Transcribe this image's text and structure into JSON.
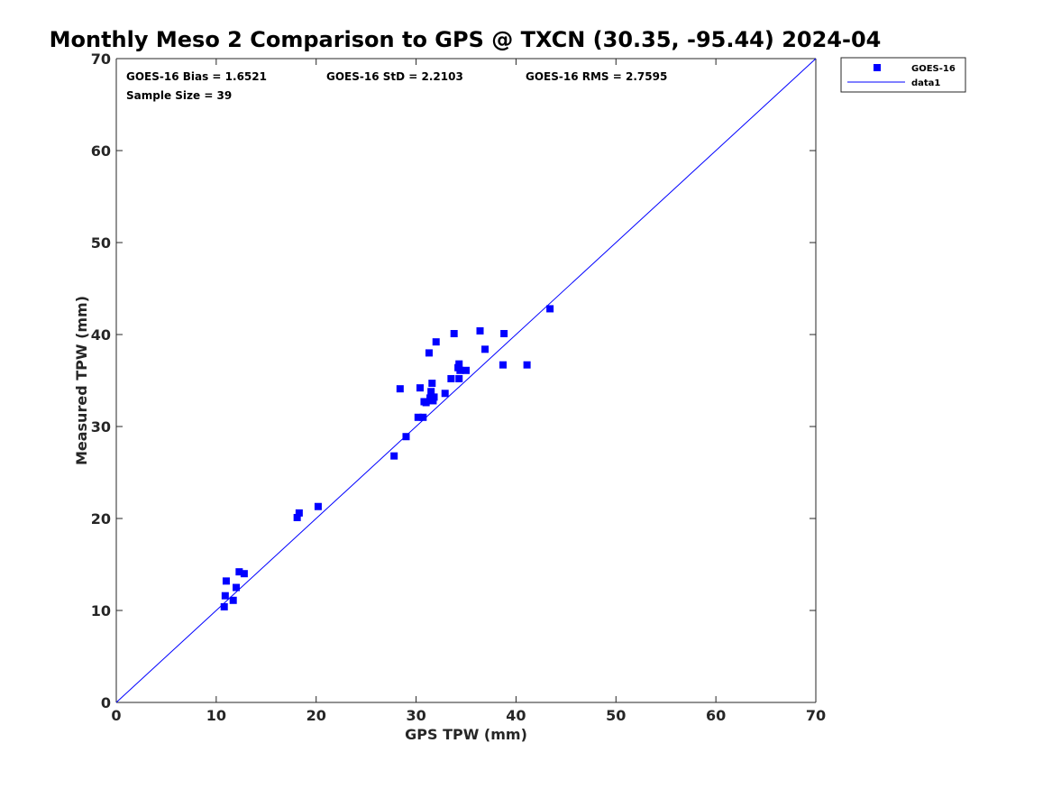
{
  "chart_data": {
    "type": "scatter",
    "title": "Monthly Meso 2 Comparison to GPS @ TXCN (30.35, -95.44) 2024-04",
    "xlabel": "GPS TPW (mm)",
    "ylabel": "Measured TPW (mm)",
    "xlim": [
      0,
      70
    ],
    "ylim": [
      0,
      70
    ],
    "xticks": [
      "0",
      "10",
      "20",
      "30",
      "40",
      "50",
      "60",
      "70"
    ],
    "yticks": [
      "0",
      "10",
      "20",
      "30",
      "40",
      "50",
      "60",
      "70"
    ],
    "xtick_values": [
      0,
      10,
      20,
      30,
      40,
      50,
      60,
      70
    ],
    "ytick_values": [
      0,
      10,
      20,
      30,
      40,
      50,
      60,
      70
    ],
    "grid": false,
    "legend_position": "outside-top-right",
    "stats": {
      "bias": "GOES-16 Bias = 1.6521",
      "std": "GOES-16 StD = 2.2103",
      "rms": "GOES-16 RMS = 2.7595",
      "sample": "Sample Size = 39"
    },
    "series": [
      {
        "name": "GOES-16",
        "kind": "scatter",
        "marker": "square",
        "color": "#0000ff",
        "x": [
          10.8,
          10.9,
          11.0,
          11.7,
          12.0,
          12.3,
          12.8,
          18.1,
          18.3,
          20.2,
          27.8,
          28.4,
          29.0,
          30.2,
          30.4,
          30.7,
          30.8,
          31.0,
          31.3,
          31.4,
          31.5,
          31.6,
          31.7,
          31.8,
          32.0,
          32.9,
          33.5,
          33.8,
          34.2,
          34.3,
          34.3,
          34.4,
          35.0,
          36.4,
          36.9,
          38.7,
          38.8,
          41.1,
          43.4
        ],
        "y": [
          10.4,
          11.6,
          13.2,
          11.1,
          12.5,
          14.2,
          14.0,
          20.1,
          20.6,
          21.3,
          26.8,
          34.1,
          28.9,
          31.0,
          34.2,
          31.0,
          32.7,
          32.6,
          38.0,
          33.1,
          33.8,
          34.7,
          32.8,
          33.2,
          39.2,
          33.6,
          35.2,
          40.1,
          36.4,
          36.8,
          35.2,
          36.1,
          36.1,
          40.4,
          38.4,
          36.7,
          40.1,
          36.7,
          42.8
        ]
      },
      {
        "name": "data1",
        "kind": "line",
        "color": "#0000ff",
        "x": [
          0,
          70
        ],
        "y": [
          0,
          70
        ]
      }
    ]
  }
}
